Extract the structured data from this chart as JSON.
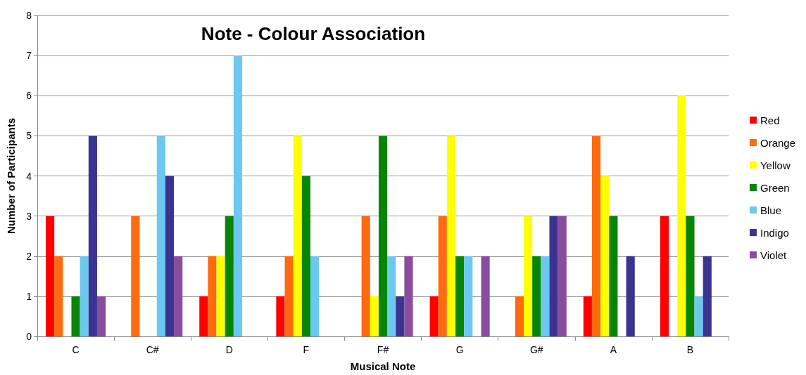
{
  "chart_data": {
    "type": "bar",
    "title": "Note - Colour Association",
    "xlabel": "Musical Note",
    "ylabel": "Number of Participants",
    "categories": [
      "C",
      "C#",
      "D",
      "F",
      "F#",
      "G",
      "G#",
      "A",
      "B"
    ],
    "series": [
      {
        "name": "Red",
        "color": "#ff0000",
        "values": [
          3,
          0,
          1,
          1,
          0,
          1,
          0,
          1,
          3
        ]
      },
      {
        "name": "Orange",
        "color": "#ff6a0e",
        "values": [
          2,
          3,
          2,
          2,
          3,
          3,
          1,
          5,
          0
        ]
      },
      {
        "name": "Yellow",
        "color": "#ffff00",
        "values": [
          0,
          0,
          2,
          5,
          1,
          5,
          3,
          4,
          6
        ]
      },
      {
        "name": "Green",
        "color": "#078507",
        "values": [
          1,
          0,
          3,
          4,
          5,
          2,
          2,
          3,
          3
        ]
      },
      {
        "name": "Blue",
        "color": "#6cc8ee",
        "values": [
          2,
          5,
          7,
          2,
          2,
          2,
          2,
          0,
          1
        ]
      },
      {
        "name": "Indigo",
        "color": "#3b3391",
        "values": [
          5,
          4,
          0,
          0,
          1,
          0,
          3,
          2,
          2
        ]
      },
      {
        "name": "Violet",
        "color": "#8a4c9e",
        "values": [
          1,
          2,
          0,
          0,
          2,
          2,
          3,
          0,
          0
        ]
      }
    ],
    "ylim": [
      0,
      8
    ],
    "yticks": [
      0,
      1,
      2,
      3,
      4,
      5,
      6,
      7,
      8
    ],
    "grid": "y",
    "legend": "right"
  }
}
